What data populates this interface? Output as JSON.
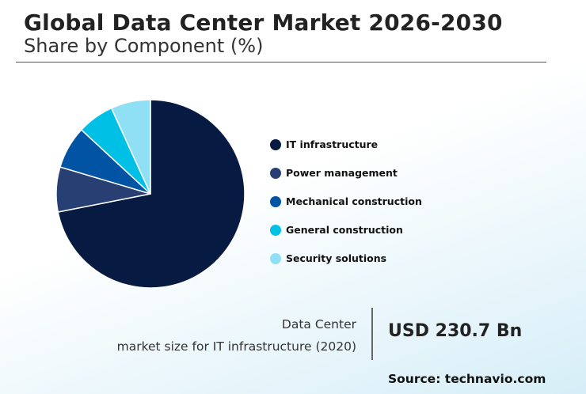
{
  "header": {
    "title": "Global Data Center Market 2026-2030",
    "subtitle": "Share by Component (%)"
  },
  "chart_data": {
    "type": "pie",
    "title": "Global Data Center Market 2026-2030",
    "subtitle": "Share by Component (%)",
    "categories": [
      "IT infrastructure",
      "Power management",
      "Mechanical construction",
      "General construction",
      "Security solutions"
    ],
    "values": [
      71.9,
      7.7,
      7.3,
      6.3,
      6.8
    ],
    "colors": [
      "#061a42",
      "#283f74",
      "#0153a4",
      "#00c0e6",
      "#8fe0f5"
    ],
    "legend_position": "right"
  },
  "legend": {
    "items": [
      {
        "label": "IT infrastructure"
      },
      {
        "label": "Power management"
      },
      {
        "label": "Mechanical construction"
      },
      {
        "label": "General construction"
      },
      {
        "label": "Security solutions"
      }
    ]
  },
  "market": {
    "line1": "Data Center",
    "line2": "market size for IT infrastructure (2020)",
    "value": "USD 230.7 Bn"
  },
  "source": "Source: technavio.com"
}
